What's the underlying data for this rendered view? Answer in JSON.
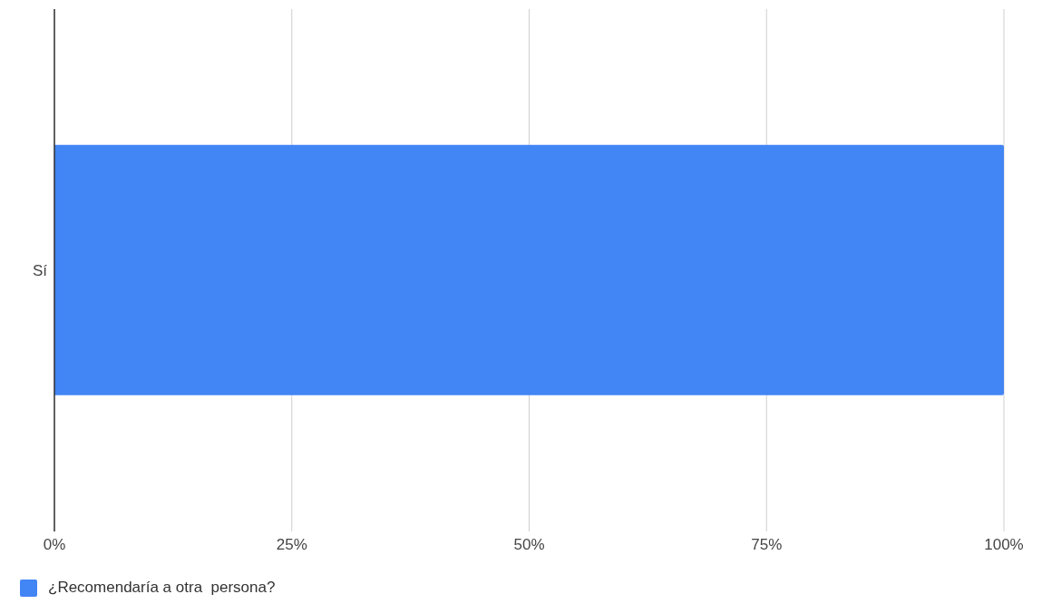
{
  "chart_data": {
    "type": "bar",
    "orientation": "horizontal",
    "categories": [
      "Sí"
    ],
    "series": [
      {
        "name": "¿Recomendaría a otra  persona?",
        "color": "#4285f4",
        "values": [
          100
        ]
      }
    ],
    "xlim": [
      0,
      100
    ],
    "xticks": [
      {
        "value": 0,
        "label": "0%"
      },
      {
        "value": 25,
        "label": "25%"
      },
      {
        "value": 50,
        "label": "50%"
      },
      {
        "value": 75,
        "label": "75%"
      },
      {
        "value": 100,
        "label": "100%"
      }
    ],
    "grid": "x",
    "legend": "bottom"
  }
}
